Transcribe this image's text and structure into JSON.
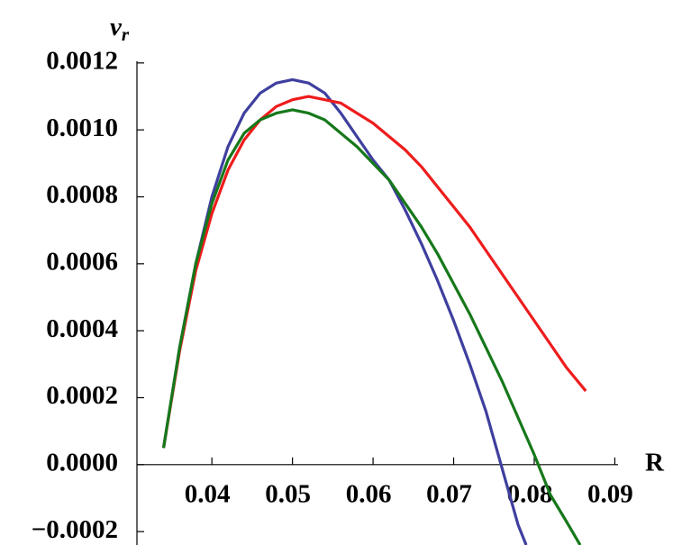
{
  "chart_data": {
    "type": "line",
    "x_label": "R",
    "y_label": {
      "base": "v",
      "sub": "r"
    },
    "xlim": [
      0.0307,
      0.0904
    ],
    "ylim": [
      -0.00024,
      0.001205
    ],
    "xticks": [
      0.04,
      0.05,
      0.06,
      0.07,
      0.08,
      0.09
    ],
    "yticks": [
      {
        "value": -0.0002,
        "label": "−0.0002"
      },
      {
        "value": 0,
        "label": "0.0000"
      },
      {
        "value": 0.0002,
        "label": "0.0002"
      },
      {
        "value": 0.0004,
        "label": "0.0004"
      },
      {
        "value": 0.0006,
        "label": "0.0006"
      },
      {
        "value": 0.0008,
        "label": "0.0008"
      },
      {
        "value": 0.001,
        "label": "0.0010"
      },
      {
        "value": 0.0012,
        "label": "0.0012"
      }
    ],
    "series": [
      {
        "color": "#3f3f9f",
        "x": [
          0.034,
          0.036,
          0.038,
          0.04,
          0.042,
          0.044,
          0.046,
          0.048,
          0.05,
          0.052,
          0.054,
          0.056,
          0.058,
          0.06,
          0.062,
          0.064,
          0.066,
          0.068,
          0.07,
          0.072,
          0.074,
          0.076,
          0.078,
          0.079
        ],
        "values": [
          5e-05,
          0.00035,
          0.0006,
          0.0008,
          0.00095,
          0.00105,
          0.00111,
          0.00114,
          0.00115,
          0.00114,
          0.00111,
          0.00105,
          0.00098,
          0.00091,
          0.00085,
          0.00076,
          0.00066,
          0.00055,
          0.00043,
          0.0003,
          0.00016,
          -1e-05,
          -0.00018,
          -0.00024
        ]
      },
      {
        "color": "#ee1c1c",
        "x": [
          0.034,
          0.036,
          0.038,
          0.04,
          0.042,
          0.044,
          0.046,
          0.048,
          0.05,
          0.052,
          0.054,
          0.056,
          0.058,
          0.06,
          0.062,
          0.064,
          0.066,
          0.068,
          0.07,
          0.072,
          0.074,
          0.076,
          0.078,
          0.08,
          0.082,
          0.084,
          0.0864
        ],
        "values": [
          5e-05,
          0.00034,
          0.00058,
          0.00075,
          0.00088,
          0.00097,
          0.00103,
          0.00107,
          0.00109,
          0.0011,
          0.00109,
          0.00108,
          0.00105,
          0.00102,
          0.00098,
          0.00094,
          0.00089,
          0.00083,
          0.00077,
          0.00071,
          0.00064,
          0.00057,
          0.0005,
          0.00043,
          0.00036,
          0.00029,
          0.00022
        ]
      },
      {
        "color": "#16781a",
        "x": [
          0.034,
          0.036,
          0.038,
          0.04,
          0.042,
          0.044,
          0.046,
          0.048,
          0.05,
          0.052,
          0.054,
          0.056,
          0.058,
          0.06,
          0.062,
          0.064,
          0.066,
          0.068,
          0.07,
          0.072,
          0.074,
          0.076,
          0.078,
          0.08,
          0.082,
          0.084,
          0.0857
        ],
        "values": [
          5e-05,
          0.00035,
          0.0006,
          0.00078,
          0.00091,
          0.00099,
          0.00103,
          0.00105,
          0.00106,
          0.00105,
          0.00103,
          0.00099,
          0.00095,
          0.0009,
          0.00085,
          0.00078,
          0.00071,
          0.00063,
          0.00054,
          0.00045,
          0.00035,
          0.00025,
          0.00014,
          3e-05,
          -9e-05,
          -0.00017,
          -0.00024
        ]
      }
    ]
  }
}
